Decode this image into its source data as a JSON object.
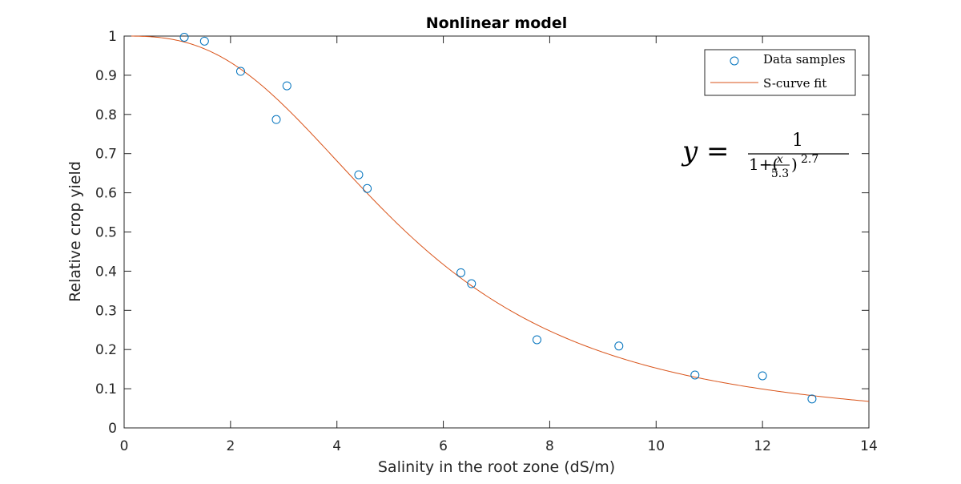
{
  "chart_data": {
    "type": "scatter",
    "title": "Nonlinear model",
    "xlabel": "Salinity in the root zone (dS/m)",
    "ylabel": "Relative crop yield",
    "xlim": [
      0,
      14
    ],
    "ylim": [
      0,
      1
    ],
    "xticks": [
      0,
      2,
      4,
      6,
      8,
      10,
      12,
      14
    ],
    "xtick_labels": [
      "0",
      "2",
      "4",
      "6",
      "8",
      "10",
      "12",
      "14"
    ],
    "yticks": [
      0,
      0.1,
      0.2,
      0.3,
      0.4,
      0.5,
      0.6,
      0.7,
      0.8,
      0.9,
      1
    ],
    "ytick_labels": [
      "0",
      "0.1",
      "0.2",
      "0.3",
      "0.4",
      "0.5",
      "0.6",
      "0.7",
      "0.8",
      "0.9",
      "1"
    ],
    "grid": false,
    "legend_position": "top-right",
    "series": [
      {
        "name": "Data samples",
        "kind": "scatter",
        "marker": "circle",
        "color": "#0072bd",
        "x": [
          1.13,
          1.51,
          2.19,
          2.86,
          3.06,
          4.41,
          4.57,
          6.33,
          6.53,
          7.76,
          9.3,
          10.73,
          12.0,
          12.93
        ],
        "y": [
          0.997,
          0.987,
          0.91,
          0.787,
          0.873,
          0.646,
          0.611,
          0.396,
          0.368,
          0.225,
          0.209,
          0.135,
          0.133,
          0.074
        ]
      },
      {
        "name": "S-curve fit",
        "kind": "line",
        "color": "#d95319",
        "model": {
          "form": "1/(1+(x/a)^b)",
          "a": 5.3,
          "b": 2.7
        }
      }
    ],
    "annotation": {
      "lhs": "y =",
      "numerator": "1",
      "denominator": "1+(",
      "frac_num": "x",
      "frac_den": "5.3",
      "close": ")",
      "exponent": "2.7"
    }
  }
}
